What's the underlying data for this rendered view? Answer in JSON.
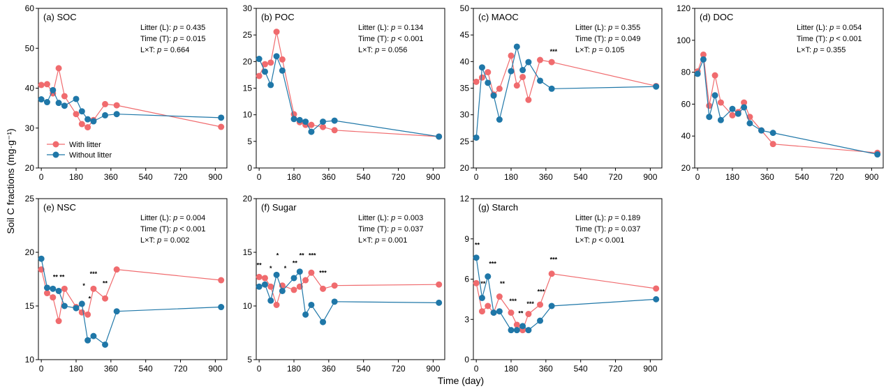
{
  "figure": {
    "ylabel": "Soil C fractions (mg·g⁻¹)",
    "xlabel": "Time (day)",
    "legend": {
      "with": "With litter",
      "without": "Without litter"
    },
    "colors": {
      "with": "#f06b6e",
      "without": "#1f77a8"
    }
  },
  "chart_data": [
    {
      "type": "line",
      "label": "(a) SOC",
      "ylim": [
        20,
        60
      ],
      "yticks": [
        20,
        30,
        40,
        50,
        60
      ],
      "xlim": [
        -15,
        960
      ],
      "xticks": [
        0,
        180,
        360,
        540,
        720,
        900
      ],
      "stats": [
        "Litter (L): p = 0.435",
        "Time (T): p = 0.015",
        "L×T: p = 0.664"
      ],
      "series": [
        {
          "name": "With litter",
          "x": [
            0,
            30,
            60,
            90,
            120,
            180,
            210,
            240,
            270,
            330,
            390,
            930
          ],
          "y": [
            40.8,
            41.0,
            38.7,
            45.0,
            38.0,
            33.5,
            31.0,
            30.2,
            32.0,
            36.0,
            35.7,
            30.3
          ]
        },
        {
          "name": "Without litter",
          "x": [
            0,
            30,
            60,
            90,
            120,
            180,
            210,
            240,
            270,
            330,
            390,
            930
          ],
          "y": [
            37.2,
            36.5,
            39.5,
            36.3,
            35.6,
            37.3,
            34.2,
            32.2,
            31.7,
            33.2,
            33.5,
            32.6
          ]
        }
      ],
      "legend_visible": true
    },
    {
      "type": "line",
      "label": "(b) POC",
      "ylim": [
        0,
        30
      ],
      "yticks": [
        0,
        5,
        10,
        15,
        20,
        25,
        30
      ],
      "xlim": [
        -15,
        960
      ],
      "xticks": [
        0,
        180,
        360,
        540,
        720,
        900
      ],
      "stats": [
        "Litter (L): p = 0.134",
        "Time (T): p < 0.001",
        "L×T: p = 0.056"
      ],
      "series": [
        {
          "name": "With litter",
          "x": [
            0,
            30,
            60,
            90,
            120,
            180,
            210,
            240,
            270,
            330,
            390,
            930
          ],
          "y": [
            17.3,
            19.5,
            19.8,
            25.6,
            20.4,
            10.1,
            8.6,
            8.1,
            8.1,
            7.7,
            7.1,
            5.9
          ]
        },
        {
          "name": "Without litter",
          "x": [
            0,
            30,
            60,
            90,
            120,
            180,
            210,
            240,
            270,
            330,
            390,
            930
          ],
          "y": [
            20.5,
            18.1,
            15.6,
            21.0,
            18.3,
            9.2,
            9.0,
            8.7,
            6.8,
            8.7,
            8.9,
            5.9
          ]
        }
      ]
    },
    {
      "type": "line",
      "label": "(c) MAOC",
      "ylim": [
        20,
        50
      ],
      "yticks": [
        20,
        25,
        30,
        35,
        40,
        45,
        50
      ],
      "xlim": [
        -15,
        960
      ],
      "xticks": [
        0,
        180,
        360,
        540,
        720,
        900
      ],
      "stats": [
        "Litter (L): p = 0.355",
        "Time (T): p = 0.049",
        "L×T: p = 0.105"
      ],
      "series": [
        {
          "name": "With litter",
          "x": [
            0,
            30,
            60,
            90,
            120,
            180,
            210,
            240,
            270,
            330,
            390,
            930
          ],
          "y": [
            36.2,
            37.0,
            38.0,
            33.8,
            34.9,
            41.1,
            35.5,
            37.1,
            32.8,
            40.3,
            39.9,
            35.4
          ]
        },
        {
          "name": "Without litter",
          "x": [
            0,
            30,
            60,
            90,
            120,
            180,
            210,
            240,
            270,
            330,
            390,
            930
          ],
          "y": [
            25.7,
            38.9,
            36.0,
            33.6,
            29.1,
            38.2,
            42.8,
            38.4,
            39.9,
            36.4,
            34.9,
            35.3
          ]
        }
      ],
      "markers": [
        {
          "x": 400,
          "y": 41.5,
          "text": "***"
        }
      ]
    },
    {
      "type": "line",
      "label": "(d) DOC",
      "ylim": [
        20,
        120
      ],
      "yticks": [
        20,
        40,
        60,
        80,
        100,
        120
      ],
      "xlim": [
        -15,
        960
      ],
      "xticks": [
        0,
        180,
        360,
        540,
        720,
        900
      ],
      "stats": [
        "Litter (L): p = 0.054",
        "Time (T): p < 0.001",
        "L×T: p = 0.355"
      ],
      "series": [
        {
          "name": "With litter",
          "x": [
            0,
            30,
            60,
            90,
            120,
            180,
            210,
            240,
            270,
            330,
            390,
            930
          ],
          "y": [
            80.5,
            91.0,
            59.0,
            78.0,
            61.0,
            53.0,
            55.0,
            61.0,
            52.0,
            43.5,
            35.0,
            29.5
          ]
        },
        {
          "name": "Without litter",
          "x": [
            0,
            30,
            60,
            90,
            120,
            180,
            210,
            240,
            270,
            330,
            390,
            930
          ],
          "y": [
            79.0,
            88.0,
            52.0,
            65.5,
            50.0,
            57.0,
            54.0,
            58.0,
            48.0,
            43.5,
            42.0,
            28.5
          ]
        }
      ]
    },
    {
      "type": "line",
      "label": "(e) NSC",
      "ylim": [
        10,
        25
      ],
      "yticks": [
        10,
        15,
        20,
        25
      ],
      "xlim": [
        -15,
        960
      ],
      "xticks": [
        0,
        180,
        360,
        540,
        720,
        900
      ],
      "stats": [
        "Litter (L): p = 0.004",
        "Time (T): p < 0.001",
        "L×T: p = 0.002"
      ],
      "series": [
        {
          "name": "With litter",
          "x": [
            0,
            30,
            60,
            90,
            120,
            180,
            210,
            240,
            270,
            330,
            390,
            930
          ],
          "y": [
            18.4,
            16.2,
            15.8,
            13.6,
            16.6,
            14.9,
            14.4,
            14.2,
            16.6,
            15.7,
            18.4,
            17.4
          ]
        },
        {
          "name": "Without litter",
          "x": [
            0,
            30,
            60,
            90,
            120,
            180,
            210,
            240,
            270,
            330,
            390,
            930
          ],
          "y": [
            19.4,
            16.7,
            16.6,
            16.4,
            15.0,
            14.8,
            15.2,
            11.8,
            12.2,
            11.4,
            14.5,
            14.9
          ]
        }
      ],
      "markers": [
        {
          "x": 90,
          "y": 17.5,
          "text": "** **"
        },
        {
          "x": 220,
          "y": 16.7,
          "text": "*"
        },
        {
          "x": 270,
          "y": 17.8,
          "text": "***"
        },
        {
          "x": 330,
          "y": 16.9,
          "text": "**"
        },
        {
          "x": 250,
          "y": 15.5,
          "text": "*"
        }
      ]
    },
    {
      "type": "line",
      "label": "(f)  Sugar",
      "ylim": [
        5,
        20
      ],
      "yticks": [
        5,
        10,
        15,
        20
      ],
      "xlim": [
        -15,
        960
      ],
      "xticks": [
        0,
        180,
        360,
        540,
        720,
        900
      ],
      "stats": [
        "Litter (L): p = 0.003",
        "Time (T): p = 0.037",
        "L×T: p = 0.001"
      ],
      "series": [
        {
          "name": "With litter",
          "x": [
            0,
            30,
            60,
            90,
            120,
            180,
            210,
            240,
            270,
            330,
            390,
            930
          ],
          "y": [
            12.7,
            12.6,
            11.8,
            10.1,
            11.9,
            11.5,
            11.8,
            12.4,
            13.1,
            11.6,
            11.9,
            12.0
          ]
        },
        {
          "name": "Without litter",
          "x": [
            0,
            30,
            60,
            90,
            120,
            180,
            210,
            240,
            270,
            330,
            390,
            930
          ],
          "y": [
            11.8,
            12.0,
            10.5,
            12.9,
            11.4,
            12.6,
            13.2,
            9.2,
            10.1,
            8.5,
            10.4,
            10.3
          ]
        }
      ],
      "markers": [
        {
          "x": 0,
          "y": 13.6,
          "text": "**"
        },
        {
          "x": 60,
          "y": 13.3,
          "text": "*"
        },
        {
          "x": 95,
          "y": 14.5,
          "text": "*"
        },
        {
          "x": 135,
          "y": 13.3,
          "text": "*"
        },
        {
          "x": 185,
          "y": 13.8,
          "text": "**"
        },
        {
          "x": 220,
          "y": 14.5,
          "text": "**"
        },
        {
          "x": 275,
          "y": 14.5,
          "text": "***"
        },
        {
          "x": 330,
          "y": 12.9,
          "text": "***"
        }
      ]
    },
    {
      "type": "line",
      "label": "(g) Starch",
      "ylim": [
        0,
        12
      ],
      "yticks": [
        0,
        3,
        6,
        9,
        12
      ],
      "xlim": [
        -15,
        960
      ],
      "xticks": [
        0,
        180,
        360,
        540,
        720,
        900
      ],
      "stats": [
        "Litter (L): p = 0.189",
        "Time (T): p = 0.037",
        "L×T: p < 0.001"
      ],
      "series": [
        {
          "name": "With litter",
          "x": [
            0,
            30,
            60,
            90,
            120,
            180,
            210,
            240,
            270,
            330,
            390,
            930
          ],
          "y": [
            5.7,
            3.6,
            4.0,
            3.5,
            4.7,
            3.5,
            2.6,
            2.2,
            3.4,
            4.1,
            6.4,
            5.3
          ]
        },
        {
          "name": "Without litter",
          "x": [
            0,
            30,
            60,
            90,
            120,
            180,
            210,
            240,
            270,
            330,
            390,
            930
          ],
          "y": [
            7.6,
            4.6,
            6.2,
            3.5,
            3.6,
            2.2,
            2.2,
            2.5,
            2.2,
            2.9,
            4.0,
            4.5
          ]
        }
      ],
      "markers": [
        {
          "x": 5,
          "y": 8.4,
          "text": "**"
        },
        {
          "x": 35,
          "y": 5.5,
          "text": "**"
        },
        {
          "x": 85,
          "y": 7.0,
          "text": "***"
        },
        {
          "x": 135,
          "y": 5.5,
          "text": "**"
        },
        {
          "x": 190,
          "y": 4.2,
          "text": "***"
        },
        {
          "x": 230,
          "y": 3.3,
          "text": "**"
        },
        {
          "x": 280,
          "y": 4.0,
          "text": "***"
        },
        {
          "x": 335,
          "y": 4.9,
          "text": "***"
        },
        {
          "x": 400,
          "y": 7.3,
          "text": "***"
        }
      ]
    }
  ]
}
